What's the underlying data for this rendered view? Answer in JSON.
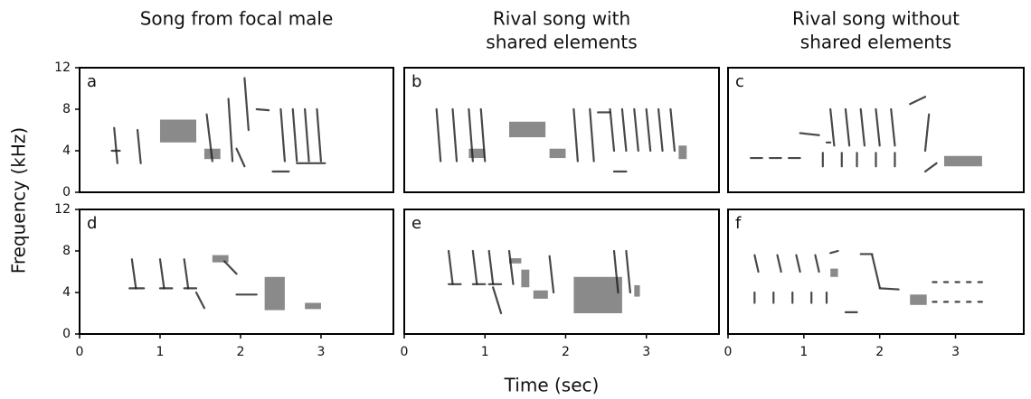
{
  "xlabel": "Time (sec)",
  "ylabel": "Frequency (kHz)",
  "chart_data": [
    {
      "type": "spectrogram",
      "panel": "a",
      "title": [
        "Song from focal male"
      ],
      "xlim": [
        0,
        3.9
      ],
      "ylim": [
        0,
        12
      ],
      "yticks": [
        0,
        4,
        8,
        12
      ],
      "strokes": [
        [
          0.43,
          6.2,
          0.47,
          2.8
        ],
        [
          0.72,
          6,
          0.76,
          2.8
        ],
        [
          0.4,
          4,
          0.5,
          4
        ],
        [
          1.58,
          7.5,
          1.65,
          3
        ],
        [
          1.85,
          9,
          1.9,
          3
        ],
        [
          1.95,
          4.2,
          2.05,
          2.5
        ],
        [
          2.2,
          8,
          2.35,
          7.9
        ],
        [
          2.05,
          11,
          2.1,
          6
        ],
        [
          2.5,
          8,
          2.55,
          3
        ],
        [
          2.65,
          8,
          2.7,
          3
        ],
        [
          2.8,
          8,
          2.85,
          3
        ],
        [
          2.95,
          8,
          3.0,
          3
        ],
        [
          2.4,
          2,
          2.6,
          2
        ],
        [
          2.7,
          2.8,
          3.05,
          2.8
        ]
      ],
      "bands": [
        [
          1.0,
          1.45,
          4.8,
          7.0
        ],
        [
          1.55,
          1.75,
          3.2,
          4.2
        ]
      ]
    },
    {
      "type": "spectrogram",
      "panel": "b",
      "title": [
        "Rival song with",
        "shared elements"
      ],
      "xlim": [
        0,
        3.9
      ],
      "ylim": [
        0,
        12
      ],
      "strokes": [
        [
          0.4,
          8,
          0.45,
          3
        ],
        [
          0.6,
          8,
          0.65,
          3
        ],
        [
          0.8,
          8,
          0.85,
          3
        ],
        [
          0.95,
          8,
          1.0,
          3
        ],
        [
          2.1,
          8,
          2.15,
          3
        ],
        [
          2.3,
          8,
          2.35,
          3
        ],
        [
          2.4,
          7.7,
          2.55,
          7.7
        ],
        [
          2.55,
          8,
          2.6,
          4
        ],
        [
          2.7,
          8,
          2.75,
          4
        ],
        [
          2.85,
          8,
          2.9,
          4
        ],
        [
          3.0,
          8,
          3.05,
          4
        ],
        [
          3.15,
          8,
          3.2,
          4
        ],
        [
          3.3,
          8,
          3.35,
          4
        ],
        [
          2.6,
          2,
          2.75,
          2
        ]
      ],
      "bands": [
        [
          0.8,
          1.0,
          3.3,
          4.2
        ],
        [
          1.3,
          1.75,
          5.3,
          6.8
        ],
        [
          1.8,
          2.0,
          3.3,
          4.2
        ],
        [
          3.4,
          3.5,
          3.2,
          4.5
        ]
      ]
    },
    {
      "type": "spectrogram",
      "panel": "c",
      "title": [
        "Rival song without",
        "shared elements"
      ],
      "xlim": [
        0,
        3.9
      ],
      "ylim": [
        0,
        12
      ],
      "strokes": [
        [
          0.3,
          3.3,
          0.45,
          3.3
        ],
        [
          0.55,
          3.3,
          0.7,
          3.3
        ],
        [
          0.8,
          3.3,
          0.95,
          3.3
        ],
        [
          0.95,
          5.7,
          1.2,
          5.5
        ],
        [
          1.3,
          4.8,
          1.35,
          4.8
        ],
        [
          1.35,
          8,
          1.4,
          4.5
        ],
        [
          1.55,
          8,
          1.6,
          4.5
        ],
        [
          1.75,
          8,
          1.8,
          4.5
        ],
        [
          1.95,
          8,
          2.0,
          4.5
        ],
        [
          2.15,
          8,
          2.2,
          4.5
        ],
        [
          2.4,
          8.5,
          2.6,
          9.2
        ],
        [
          2.65,
          7.5,
          2.6,
          4
        ],
        [
          2.6,
          2,
          2.75,
          2.8
        ],
        [
          1.25,
          3.8,
          1.25,
          2.5
        ],
        [
          1.5,
          3.8,
          1.5,
          2.5
        ],
        [
          1.7,
          3.8,
          1.7,
          2.5
        ],
        [
          1.95,
          3.8,
          1.95,
          2.5
        ],
        [
          2.2,
          3.8,
          2.2,
          2.5
        ]
      ],
      "bands": [
        [
          2.85,
          3.35,
          2.5,
          3.5
        ]
      ]
    },
    {
      "type": "spectrogram",
      "panel": "d",
      "xlim": [
        0,
        3.9
      ],
      "ylim": [
        0,
        12
      ],
      "xticks": [
        0,
        1,
        2,
        3
      ],
      "yticks": [
        0,
        4,
        8,
        12
      ],
      "strokes": [
        [
          0.62,
          4.4,
          0.8,
          4.4
        ],
        [
          1.0,
          4.4,
          1.15,
          4.4
        ],
        [
          1.3,
          4.4,
          1.45,
          4.4
        ],
        [
          0.65,
          7.2,
          0.7,
          4.4
        ],
        [
          1.0,
          7.2,
          1.05,
          4.4
        ],
        [
          1.3,
          7.2,
          1.35,
          4.4
        ],
        [
          1.8,
          7,
          1.95,
          5.8
        ],
        [
          1.95,
          3.8,
          2.2,
          3.8
        ],
        [
          1.45,
          4,
          1.55,
          2.5
        ]
      ],
      "bands": [
        [
          1.65,
          1.85,
          6.9,
          7.6
        ],
        [
          2.3,
          2.55,
          2.3,
          5.5
        ],
        [
          2.8,
          3.0,
          2.4,
          3.0
        ]
      ]
    },
    {
      "type": "spectrogram",
      "panel": "e",
      "xlim": [
        0,
        3.9
      ],
      "ylim": [
        0,
        12
      ],
      "xticks": [
        0,
        1,
        2,
        3
      ],
      "strokes": [
        [
          0.55,
          8,
          0.6,
          4.8
        ],
        [
          0.85,
          8,
          0.9,
          4.8
        ],
        [
          1.05,
          8,
          1.1,
          4.8
        ],
        [
          1.3,
          8,
          1.35,
          4.8
        ],
        [
          0.55,
          4.8,
          0.7,
          4.8
        ],
        [
          0.85,
          4.8,
          1.0,
          4.8
        ],
        [
          1.05,
          4.8,
          1.2,
          4.8
        ],
        [
          1.8,
          7.5,
          1.85,
          4
        ],
        [
          2.6,
          8,
          2.65,
          4
        ],
        [
          2.75,
          8,
          2.8,
          4
        ],
        [
          1.1,
          4.5,
          1.2,
          2
        ]
      ],
      "bands": [
        [
          1.3,
          1.45,
          6.8,
          7.3
        ],
        [
          1.45,
          1.55,
          4.5,
          6.2
        ],
        [
          1.6,
          1.78,
          3.4,
          4.2
        ],
        [
          2.1,
          2.7,
          2.0,
          5.5
        ],
        [
          2.85,
          2.92,
          3.6,
          4.7
        ]
      ]
    },
    {
      "type": "spectrogram",
      "panel": "f",
      "xlim": [
        0,
        3.9
      ],
      "ylim": [
        0,
        12
      ],
      "xticks": [
        0,
        1,
        2,
        3
      ],
      "strokes": [
        [
          0.35,
          7.6,
          0.4,
          6
        ],
        [
          0.65,
          7.6,
          0.7,
          6
        ],
        [
          0.9,
          7.6,
          0.95,
          6
        ],
        [
          1.15,
          7.6,
          1.2,
          6
        ],
        [
          0.35,
          4,
          0.35,
          3
        ],
        [
          0.6,
          4,
          0.6,
          3
        ],
        [
          0.85,
          4,
          0.85,
          3
        ],
        [
          1.1,
          4,
          1.1,
          3
        ],
        [
          1.3,
          4,
          1.3,
          3
        ],
        [
          1.35,
          7.8,
          1.45,
          8.0
        ],
        [
          1.55,
          2.1,
          1.7,
          2.1
        ],
        [
          1.75,
          7.7,
          1.9,
          7.7
        ],
        [
          1.9,
          7.6,
          2.0,
          4.5
        ],
        [
          2.0,
          4.4,
          2.25,
          4.3
        ],
        [
          2.7,
          3.1,
          2.75,
          3.1
        ],
        [
          2.85,
          3.1,
          2.9,
          3.1
        ],
        [
          3.0,
          3.1,
          3.05,
          3.1
        ],
        [
          3.15,
          3.1,
          3.2,
          3.1
        ],
        [
          3.3,
          3.1,
          3.35,
          3.1
        ],
        [
          2.7,
          5,
          2.75,
          5
        ],
        [
          2.85,
          5,
          2.9,
          5
        ],
        [
          3.0,
          5,
          3.05,
          5
        ],
        [
          3.15,
          5,
          3.2,
          5
        ],
        [
          3.3,
          5,
          3.35,
          5
        ]
      ],
      "bands": [
        [
          1.35,
          1.45,
          5.5,
          6.3
        ],
        [
          2.4,
          2.62,
          2.8,
          3.8
        ]
      ]
    }
  ]
}
